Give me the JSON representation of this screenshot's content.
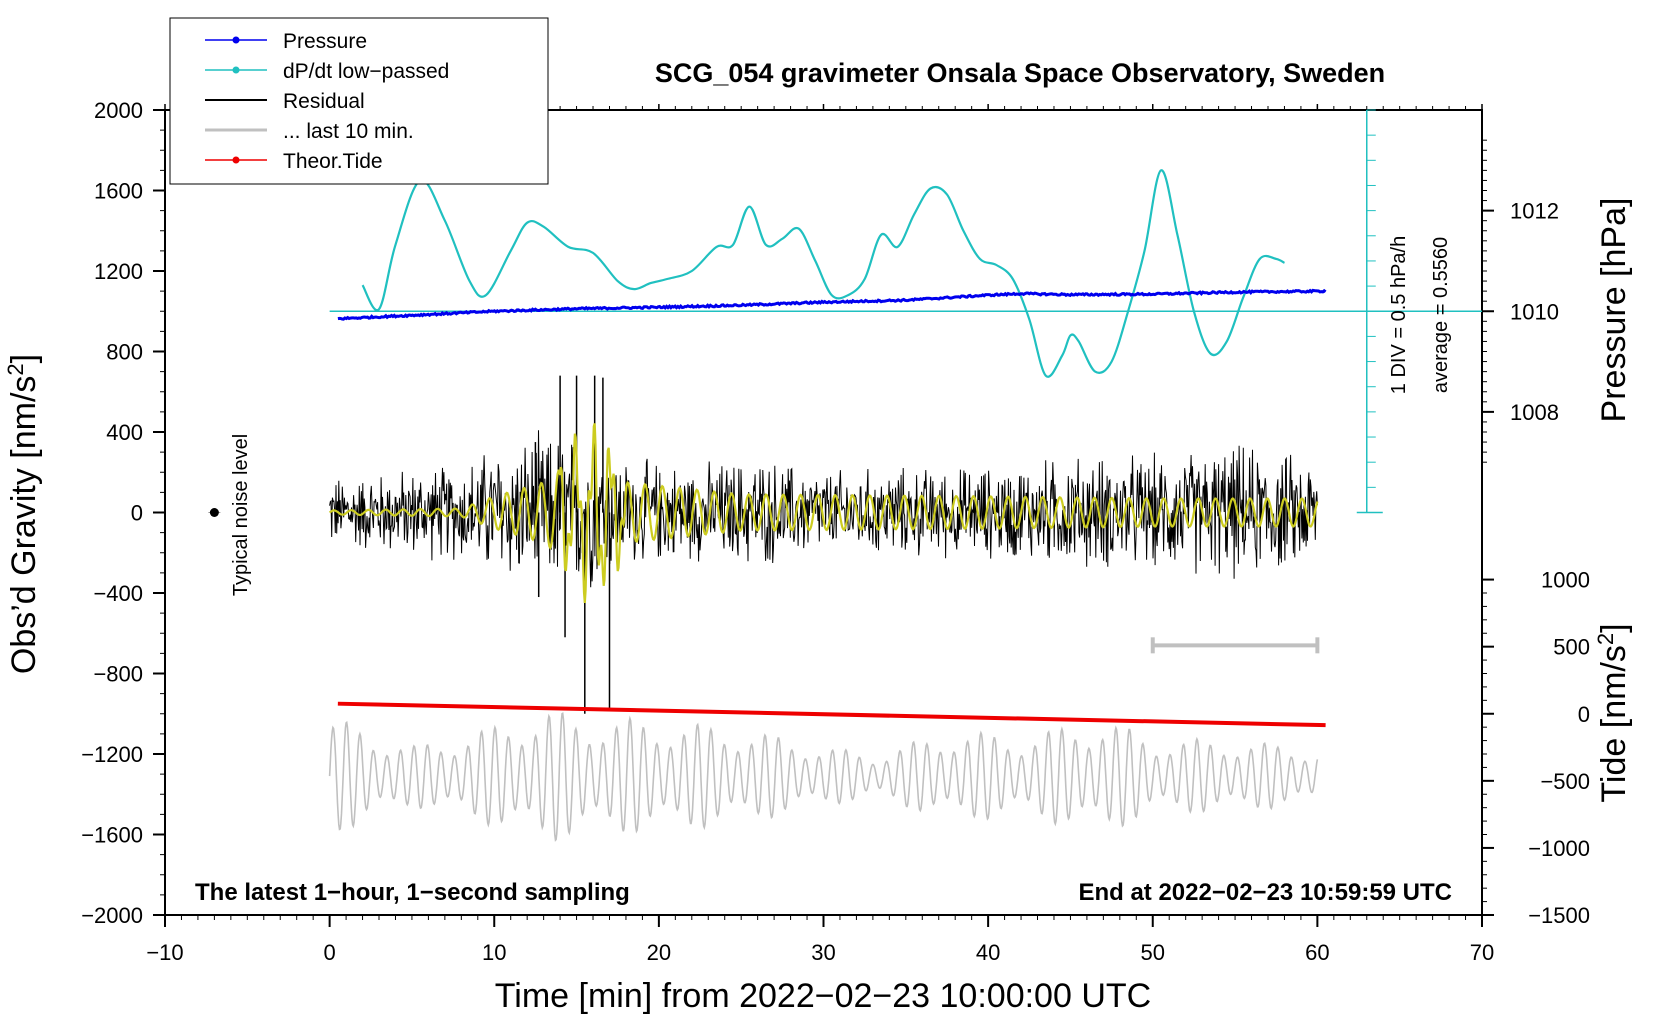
{
  "chart_data": {
    "type": "line",
    "title": "SCG_054 gravimeter Onsala Space Observatory, Sweden",
    "xlabel": "Time [min] from 2022−02−23 10:00:00 UTC",
    "ylabel_left": "Obs’d Gravity [nm/s",
    "ylabel_left_sup": "2",
    "ylabel_left_tail": "]",
    "ylabel_pressure": "Pressure [hPa]",
    "ylabel_tide": "Tide [nm/s",
    "ylabel_tide_sup": "2",
    "ylabel_tide_tail": "]",
    "xlim": [
      -10,
      70
    ],
    "ylim": [
      -2000,
      2000
    ],
    "x_ticks": [
      -10,
      0,
      10,
      20,
      30,
      40,
      50,
      60,
      70
    ],
    "x_tick_labels": [
      "−10",
      "0",
      "10",
      "20",
      "30",
      "40",
      "50",
      "60",
      "70"
    ],
    "y_ticks": [
      2000,
      1600,
      1200,
      800,
      400,
      0,
      -400,
      -800,
      -1200,
      -1600,
      -2000
    ],
    "y_tick_labels": [
      "2000",
      "1600",
      "1200",
      "800",
      "400",
      "0",
      "−400",
      "−800",
      "−1200",
      "−1600",
      "−2000"
    ],
    "pressure_axis": {
      "ticks_hpa": [
        1012,
        1010,
        1008
      ],
      "tick_labels": [
        "1012",
        "1010",
        "1008"
      ],
      "gravity_at_1010": 1000,
      "gravity_per_hpa": 250
    },
    "tide_axis": {
      "ticks": [
        1000,
        500,
        0,
        -500,
        -1000,
        -1500
      ],
      "tick_labels": [
        "1000",
        "500",
        "0",
        "−500",
        "−1000",
        "−1500"
      ],
      "gravity_at_zero": -1000,
      "scale": 0.6667
    },
    "dpdt_scale": {
      "label_div": "1 DIV = 0.5 hPa/h",
      "label_avg": "average = 0.5560",
      "baseline_gravity": 1000,
      "bottom_gravity": 0,
      "x_position_min": 63
    },
    "legend": {
      "position": "top-left",
      "entries": [
        {
          "label": "Pressure",
          "color": "#0000ee",
          "marker": true
        },
        {
          "label": "dP/dt low−passed",
          "color": "#20c0c0",
          "marker": true
        },
        {
          "label": "Residual",
          "color": "#000000",
          "marker": false
        },
        {
          "label": "... last 10 min.",
          "color": "#c0c0c0",
          "marker": false
        },
        {
          "label": "Theor.Tide",
          "color": "#ee0000",
          "marker": true
        }
      ]
    },
    "notes": {
      "bottom_left": "The latest 1−hour, 1−second sampling",
      "bottom_right": "End at 2022−02−23 10:59:59 UTC",
      "noise_label": "Typical noise level"
    },
    "last10_bar": {
      "x_start": 50,
      "x_end": 60,
      "gravity": -660
    },
    "noise_marker": {
      "x": -7,
      "gravity": 0,
      "err": 20
    },
    "series": [
      {
        "name": "Pressure",
        "color": "#0000ee",
        "unit": "hPa",
        "x": [
          0.5,
          5,
          10,
          15,
          20,
          25,
          30,
          35,
          40,
          42,
          45,
          50,
          55,
          60.5
        ],
        "values": [
          1009.85,
          1009.92,
          1010.0,
          1010.05,
          1010.08,
          1010.12,
          1010.18,
          1010.22,
          1010.32,
          1010.35,
          1010.33,
          1010.34,
          1010.38,
          1010.4
        ]
      },
      {
        "name": "dP/dt low-passed",
        "color": "#20c0c0",
        "unit": "gravity-axis units",
        "x": [
          2.0,
          3.0,
          4.0,
          5.5,
          7.0,
          8.5,
          9.5,
          11.0,
          12.0,
          13.0,
          14.5,
          16.0,
          17.5,
          18.5,
          19.5,
          20.5,
          22.0,
          23.5,
          24.5,
          25.5,
          26.5,
          27.5,
          28.5,
          29.5,
          30.5,
          31.5,
          32.5,
          33.5,
          34.5,
          35.5,
          36.5,
          37.5,
          38.5,
          39.5,
          40.5,
          41.5,
          42.5,
          43.5,
          44.5,
          45.0,
          45.5,
          46.5,
          47.5,
          48.5,
          49.5,
          50.5,
          51.5,
          52.5,
          53.5,
          54.5,
          55.5,
          56.5,
          57.5,
          58.0
        ],
        "values": [
          1130,
          1010,
          1330,
          1650,
          1450,
          1150,
          1080,
          1300,
          1440,
          1420,
          1320,
          1290,
          1150,
          1110,
          1140,
          1160,
          1200,
          1320,
          1330,
          1520,
          1330,
          1360,
          1410,
          1250,
          1080,
          1080,
          1160,
          1380,
          1320,
          1480,
          1610,
          1580,
          1400,
          1260,
          1230,
          1160,
          960,
          680,
          780,
          880,
          850,
          700,
          750,
          1000,
          1300,
          1700,
          1380,
          1000,
          790,
          850,
          1070,
          1260,
          1260,
          1240
        ]
      },
      {
        "name": "Residual",
        "color": "#000000",
        "unit": "nm/s2",
        "x_range": [
          0,
          60
        ],
        "envelope_x": [
          0,
          8,
          10,
          14,
          16,
          18,
          22,
          26,
          30,
          35,
          40,
          45,
          50,
          55,
          60
        ],
        "envelope_values": [
          200,
          280,
          380,
          450,
          420,
          300,
          270,
          310,
          240,
          250,
          260,
          320,
          320,
          380,
          300
        ],
        "spikes": [
          {
            "x": 12.5,
            "value": 350
          },
          {
            "x": 12.7,
            "value": -420
          },
          {
            "x": 14.0,
            "value": 680
          },
          {
            "x": 14.3,
            "value": -620
          },
          {
            "x": 15.0,
            "value": 680
          },
          {
            "x": 15.5,
            "value": -1000
          },
          {
            "x": 16.1,
            "value": 680
          },
          {
            "x": 16.6,
            "value": 670
          },
          {
            "x": 17.0,
            "value": -980
          }
        ]
      },
      {
        "name": "Residual low-passed",
        "color": "#cccc20",
        "unit": "nm/s2",
        "x_range": [
          0,
          60
        ],
        "amplitude_x": [
          0,
          8,
          10,
          13,
          15,
          16.5,
          18,
          25,
          40,
          50,
          60
        ],
        "amplitude_values": [
          10,
          20,
          80,
          150,
          280,
          340,
          150,
          90,
          80,
          70,
          70
        ]
      },
      {
        "name": "... last 10 min.",
        "color": "#c0c0c0",
        "unit": "gravity-axis units",
        "x_range": [
          0,
          60
        ],
        "center": -1310,
        "envelope_x": [
          0,
          5,
          10,
          13,
          15,
          20,
          25,
          30,
          33,
          38,
          42,
          47,
          50,
          55,
          60
        ],
        "envelope_values": [
          300,
          150,
          250,
          340,
          300,
          280,
          240,
          150,
          110,
          230,
          200,
          290,
          190,
          180,
          140
        ]
      },
      {
        "name": "Theor.Tide",
        "color": "#ee0000",
        "unit": "nm/s2 (tide axis)",
        "x": [
          0.5,
          60.5
        ],
        "values": [
          75,
          -85
        ]
      }
    ]
  }
}
